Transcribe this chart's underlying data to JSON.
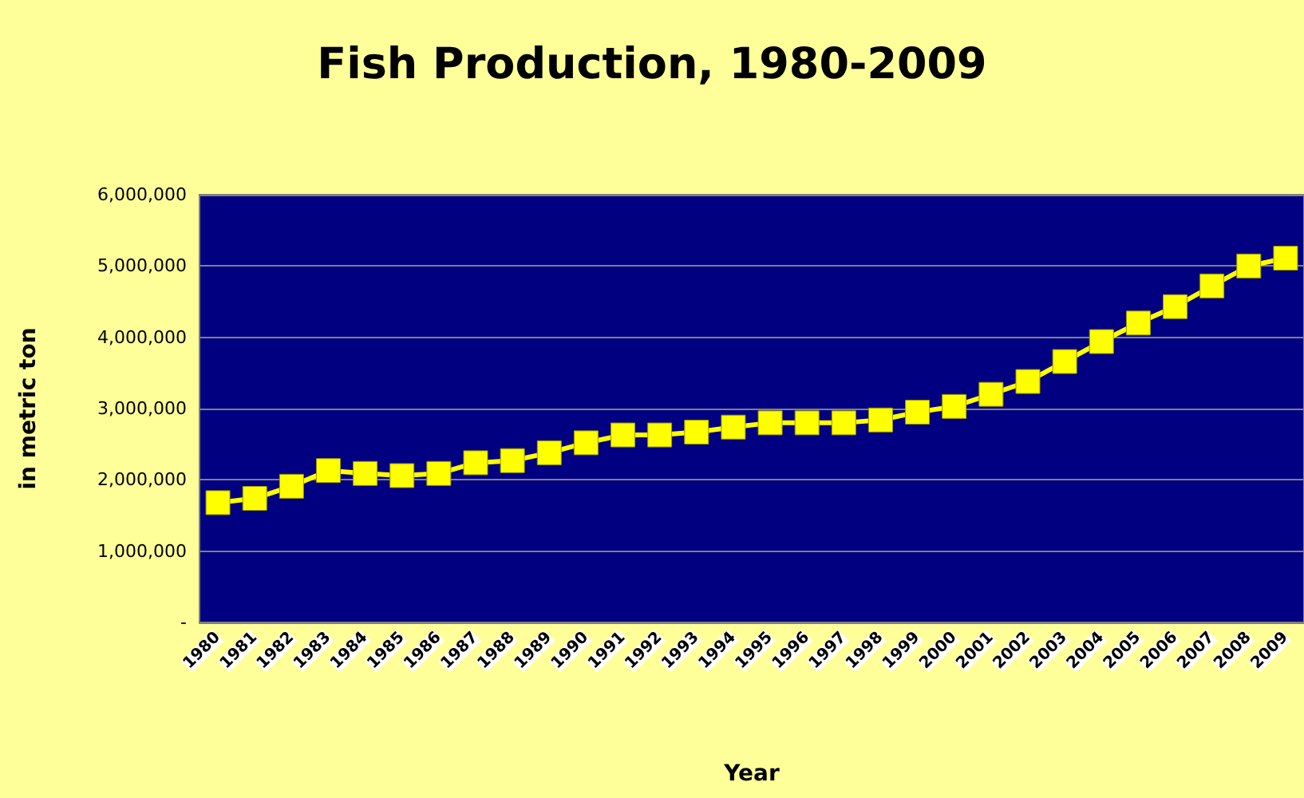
{
  "chart_data": {
    "type": "line",
    "title": "Fish Production, 1980-2009",
    "xlabel": "Year",
    "ylabel": "in metric ton",
    "categories": [
      "1980",
      "1981",
      "1982",
      "1983",
      "1984",
      "1985",
      "1986",
      "1987",
      "1988",
      "1989",
      "1990",
      "1991",
      "1992",
      "1993",
      "1994",
      "1995",
      "1996",
      "1997",
      "1998",
      "1999",
      "2000",
      "2001",
      "2002",
      "2003",
      "2004",
      "2005",
      "2006",
      "2007",
      "2008",
      "2009"
    ],
    "series": [
      {
        "color": "#ffff00",
        "values": [
          1680000,
          1740000,
          1910000,
          2130000,
          2090000,
          2060000,
          2090000,
          2240000,
          2270000,
          2380000,
          2520000,
          2630000,
          2630000,
          2670000,
          2740000,
          2800000,
          2800000,
          2800000,
          2840000,
          2950000,
          3030000,
          3200000,
          3380000,
          3660000,
          3940000,
          4200000,
          4430000,
          4720000,
          5000000,
          5110000
        ]
      }
    ],
    "ylim": [
      0,
      6000000
    ],
    "yticks": [
      {
        "value": 0,
        "label": "-"
      },
      {
        "value": 1000000,
        "label": "1,000,000"
      },
      {
        "value": 2000000,
        "label": "2,000,000"
      },
      {
        "value": 3000000,
        "label": "3,000,000"
      },
      {
        "value": 4000000,
        "label": "4,000,000"
      },
      {
        "value": 5000000,
        "label": "5,000,000"
      },
      {
        "value": 6000000,
        "label": "6,000,000"
      }
    ],
    "grid": "y",
    "marker": "square",
    "line_style": "solid"
  }
}
